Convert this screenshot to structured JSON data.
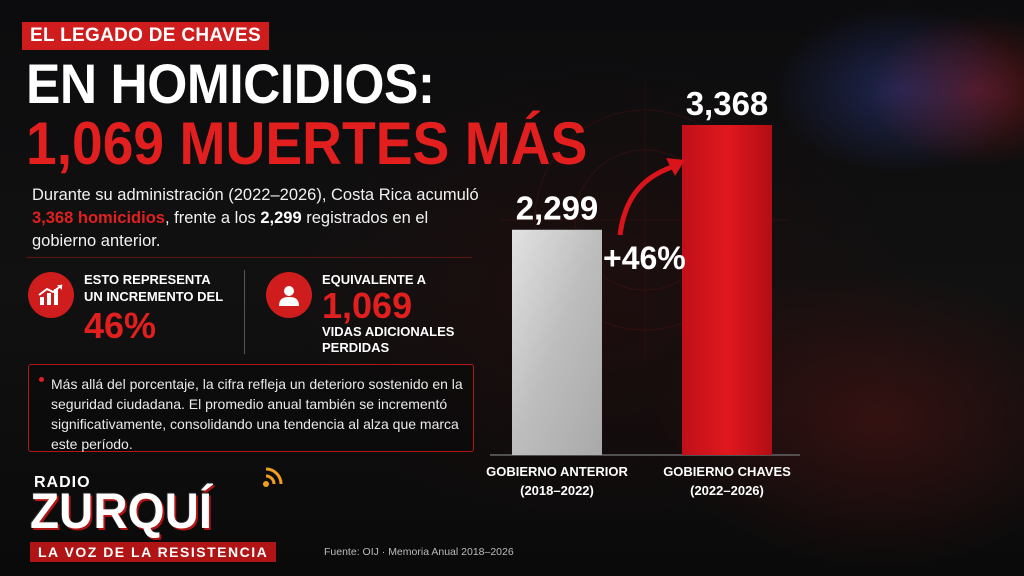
{
  "header": {
    "tag": "EL LEGADO DE CHAVES",
    "title_line1": "EN HOMICIDIOS:",
    "title_line2": "1,069 MUERTES MÁS"
  },
  "intro": {
    "part1": "Durante su administración (2022–2026), Costa Rica acumuló ",
    "highlight": "3,368 homicidios",
    "part2": ", frente a los ",
    "bold": "2,299",
    "part3": " registrados en el gobierno anterior."
  },
  "stats": [
    {
      "icon": "chart-growth-icon",
      "line1": "ESTO REPRESENTA",
      "line2": "UN INCREMENTO DEL",
      "value": "46%"
    },
    {
      "icon": "person-icon",
      "line1": "EQUIVALENTE A",
      "value": "1,069",
      "line2": "VIDAS ADICIONALES",
      "line3": "PERDIDAS"
    }
  ],
  "note": "Más allá del porcentaje, la cifra refleja un deterioro sostenido en la seguridad ciudadana. El promedio anual también se incrementó significativamente, consolidando una tendencia al alza que marca este período.",
  "logo": {
    "radio": "RADIO",
    "name": "ZURQUÍ",
    "slogan": "LA VOZ DE LA RESISTENCIA"
  },
  "source": "Fuente: OIJ · Memoria Anual 2018–2026",
  "chart_data": {
    "type": "bar",
    "categories": [
      "GOBIERNO ANTERIOR (2018–2022)",
      "GOBIERNO CHAVES (2022–2026)"
    ],
    "category_lines": [
      [
        "GOBIERNO ANTERIOR",
        "(2018–2022)"
      ],
      [
        "GOBIERNO CHAVES",
        "(2022–2026)"
      ]
    ],
    "values": [
      2299,
      3368
    ],
    "value_labels": [
      "2,299",
      "3,368"
    ],
    "annotation": "+46%",
    "colors": [
      "#c8c8c8",
      "#d9141a"
    ],
    "ylim": [
      0,
      3368
    ]
  }
}
